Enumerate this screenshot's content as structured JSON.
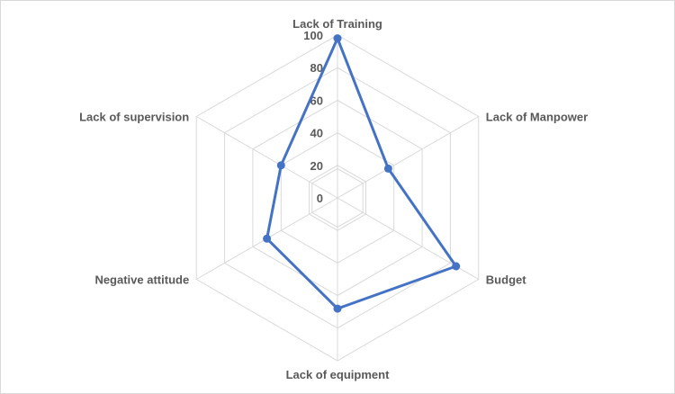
{
  "chart_data": {
    "type": "radar",
    "categories": [
      "Lack of Training",
      "Lack of Manpower",
      "Budget",
      "Lack of equipment",
      "Negative attitude",
      "Lack of supervision"
    ],
    "series": [
      {
        "values": [
          98,
          36,
          84,
          68,
          50,
          40
        ]
      }
    ],
    "radial_ticks": [
      "0",
      "20",
      "40",
      "60",
      "80",
      "100"
    ],
    "rlim": [
      0,
      100
    ],
    "grid": true,
    "legend": "none",
    "colors": {
      "series": "#4472c4",
      "grid": "#d9d9d9",
      "text": "#595959"
    }
  }
}
